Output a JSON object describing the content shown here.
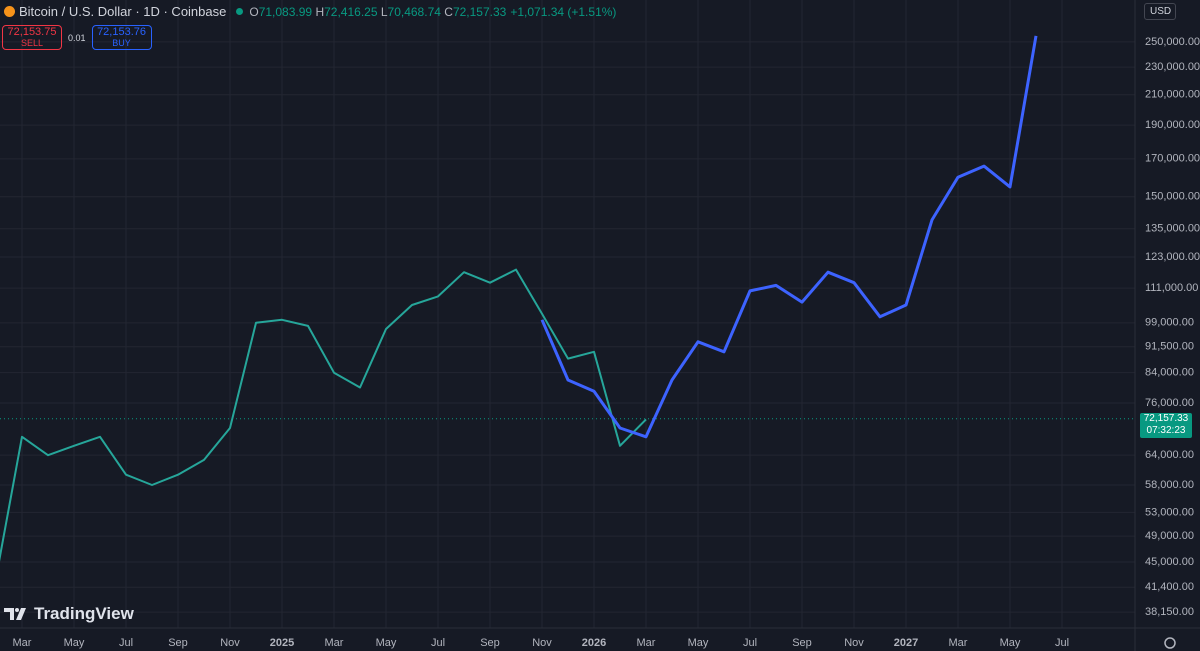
{
  "chart_data": {
    "type": "line",
    "title": "Bitcoin / U.S. Dollar · 1D · Coinbase",
    "ohlc": [
      {
        "label": "O",
        "value": "71,083.99"
      },
      {
        "label": "H",
        "value": "72,416.25"
      },
      {
        "label": "L",
        "value": "70,468.74"
      },
      {
        "label": "C",
        "value": "72,157.33"
      }
    ],
    "change": "+1,071.34 (+1.51%)",
    "sell_price": "72,153.75",
    "sell_label": "SELL",
    "spread": "0.01",
    "buy_price": "72,153.76",
    "buy_label": "BUY",
    "currency": "USD",
    "last_price": {
      "value": 72157.33,
      "label": "72,157.33"
    },
    "countdown": "07:32:23",
    "watermark": "TradingView",
    "log_scale": true,
    "grid": true,
    "x": [
      "2024-02",
      "2024-03",
      "2024-04",
      "2024-05",
      "2024-06",
      "2024-07",
      "2024-08",
      "2024-09",
      "2024-10",
      "2024-11",
      "2024-12",
      "2025-01",
      "2025-02",
      "2025-03",
      "2025-04",
      "2025-05",
      "2025-06",
      "2025-07",
      "2025-08",
      "2025-09",
      "2025-10",
      "2025-11",
      "2025-12",
      "2026-01",
      "2026-02",
      "2026-03",
      "2026-04",
      "2026-05",
      "2026-06",
      "2026-07",
      "2026-08",
      "2026-09",
      "2026-10",
      "2026-11",
      "2026-12",
      "2027-01",
      "2027-02",
      "2027-03",
      "2027-04",
      "2027-05",
      "2027-06"
    ],
    "series": [
      {
        "color": "#26a69a",
        "values": [
          42700,
          68000,
          64000,
          66000,
          68000,
          60000,
          58000,
          60000,
          63000,
          70000,
          99000,
          100000,
          98000,
          84000,
          80000,
          97000,
          105000,
          108000,
          117000,
          113000,
          118000,
          102000,
          88000,
          90000,
          66000,
          72000,
          null,
          null,
          null,
          null,
          null,
          null,
          null,
          null,
          null,
          null,
          null,
          null,
          null,
          null,
          null
        ]
      },
      {
        "color": "#3d63ff",
        "values": [
          null,
          null,
          null,
          null,
          null,
          null,
          null,
          null,
          null,
          null,
          null,
          null,
          null,
          null,
          null,
          null,
          null,
          null,
          null,
          null,
          null,
          100000,
          82000,
          79000,
          70000,
          68000,
          82000,
          93000,
          90000,
          110000,
          112000,
          106000,
          117000,
          113000,
          101000,
          105000,
          139000,
          160000,
          166000,
          155000,
          255000
        ]
      }
    ],
    "xlim": [
      "2024-02",
      "2027-09"
    ],
    "xticks": [
      {
        "value": "2024-03",
        "label": "Mar"
      },
      {
        "value": "2024-05",
        "label": "May"
      },
      {
        "value": "2024-07",
        "label": "Jul"
      },
      {
        "value": "2024-09",
        "label": "Sep"
      },
      {
        "value": "2024-11",
        "label": "Nov"
      },
      {
        "value": "2025-01",
        "label": "2025"
      },
      {
        "value": "2025-03",
        "label": "Mar"
      },
      {
        "value": "2025-05",
        "label": "May"
      },
      {
        "value": "2025-07",
        "label": "Jul"
      },
      {
        "value": "2025-09",
        "label": "Sep"
      },
      {
        "value": "2025-11",
        "label": "Nov"
      },
      {
        "value": "2026-01",
        "label": "2026"
      },
      {
        "value": "2026-03",
        "label": "Mar"
      },
      {
        "value": "2026-05",
        "label": "May"
      },
      {
        "value": "2026-07",
        "label": "Jul"
      },
      {
        "value": "2026-09",
        "label": "Sep"
      },
      {
        "value": "2026-11",
        "label": "Nov"
      },
      {
        "value": "2027-01",
        "label": "2027"
      },
      {
        "value": "2027-03",
        "label": "Mar"
      },
      {
        "value": "2027-05",
        "label": "May"
      },
      {
        "value": "2027-07",
        "label": "Jul"
      }
    ],
    "ylim": [
      36200,
      287000
    ],
    "yticks": [
      {
        "value": 250000,
        "label": "250,000.00"
      },
      {
        "value": 230000,
        "label": "230,000.00"
      },
      {
        "value": 210000,
        "label": "210,000.00"
      },
      {
        "value": 190000,
        "label": "190,000.00"
      },
      {
        "value": 170000,
        "label": "170,000.00"
      },
      {
        "value": 150000,
        "label": "150,000.00"
      },
      {
        "value": 135000,
        "label": "135,000.00"
      },
      {
        "value": 123000,
        "label": "123,000.00"
      },
      {
        "value": 111000,
        "label": "111,000.00"
      },
      {
        "value": 99000,
        "label": "99,000.00"
      },
      {
        "value": 91500,
        "label": "91,500.00"
      },
      {
        "value": 84000,
        "label": "84,000.00"
      },
      {
        "value": 76000,
        "label": "76,000.00"
      },
      {
        "value": 64000,
        "label": "64,000.00"
      },
      {
        "value": 58000,
        "label": "58,000.00"
      },
      {
        "value": 53000,
        "label": "53,000.00"
      },
      {
        "value": 49000,
        "label": "49,000.00"
      },
      {
        "value": 45000,
        "label": "45,000.00"
      },
      {
        "value": 41400,
        "label": "41,400.00"
      },
      {
        "value": 38150,
        "label": "38,150.00"
      }
    ]
  }
}
